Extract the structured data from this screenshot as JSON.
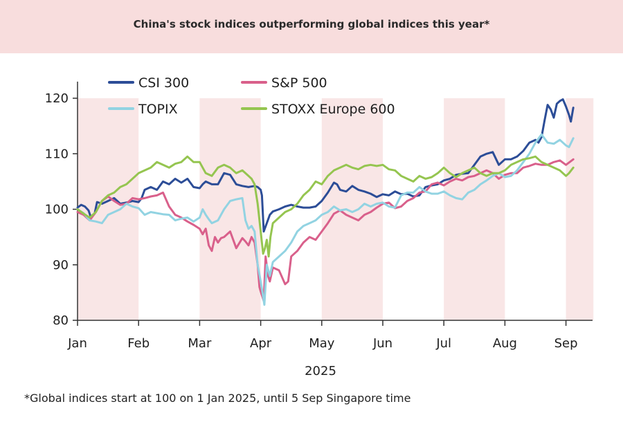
{
  "header": {
    "title": "China's stock indices outperforming global indices this year*"
  },
  "footnote": "*Global indices start at 100 on 1 Jan 2025, until 5 Sep Singapore time",
  "chart_data": {
    "type": "line",
    "title": "China's stock indices outperforming global indices this year*",
    "xlabel": "2025",
    "ylabel": "",
    "ylim": [
      80,
      120
    ],
    "yticks": [
      80,
      90,
      100,
      110,
      120
    ],
    "xlim": [
      0,
      8.4
    ],
    "months": [
      "Jan",
      "Feb",
      "Mar",
      "Apr",
      "May",
      "Jun",
      "Jul",
      "Aug",
      "Sep"
    ],
    "grid": false,
    "legend": "top-left",
    "shaded_month_bands": [
      [
        0,
        1
      ],
      [
        2,
        3
      ],
      [
        4,
        5
      ],
      [
        6,
        7
      ],
      [
        8,
        8.45
      ]
    ],
    "colors": {
      "shade": "#f9e6e6",
      "axis": "#333333"
    },
    "series": [
      {
        "name": "CSI 300",
        "color": "#2c4d97",
        "x": [
          0,
          0.06,
          0.12,
          0.18,
          0.22,
          0.28,
          0.32,
          0.4,
          0.5,
          0.6,
          0.7,
          0.8,
          0.9,
          1.0,
          1.05,
          1.1,
          1.2,
          1.3,
          1.4,
          1.5,
          1.6,
          1.7,
          1.8,
          1.9,
          2.0,
          2.05,
          2.1,
          2.2,
          2.3,
          2.4,
          2.5,
          2.6,
          2.7,
          2.8,
          2.9,
          2.95,
          3.0,
          3.02,
          3.05,
          3.1,
          3.15,
          3.2,
          3.3,
          3.4,
          3.5,
          3.6,
          3.7,
          3.8,
          3.9,
          4.0,
          4.1,
          4.2,
          4.25,
          4.3,
          4.4,
          4.5,
          4.6,
          4.7,
          4.8,
          4.9,
          5.0,
          5.1,
          5.2,
          5.3,
          5.4,
          5.5,
          5.6,
          5.7,
          5.8,
          5.9,
          6.0,
          6.1,
          6.2,
          6.3,
          6.4,
          6.5,
          6.6,
          6.7,
          6.8,
          6.9,
          7.0,
          7.1,
          7.2,
          7.3,
          7.4,
          7.5,
          7.55,
          7.6,
          7.65,
          7.7,
          7.75,
          7.8,
          7.85,
          7.9,
          7.95,
          8.0,
          8.05,
          8.08,
          8.12
        ],
        "y": [
          100.3,
          100.8,
          100.5,
          99.8,
          98.5,
          99.2,
          101.3,
          101,
          101.5,
          102,
          101,
          101.2,
          101.5,
          101.3,
          102,
          103.5,
          104,
          103.5,
          105,
          104.5,
          105.5,
          104.8,
          105.5,
          104,
          103.8,
          104.5,
          105,
          104.5,
          104.5,
          106.5,
          106.2,
          104.5,
          104.2,
          104,
          104.2,
          104,
          103.5,
          102.5,
          96,
          97.5,
          99,
          99.6,
          100,
          100.5,
          100.8,
          100.5,
          100.3,
          100.3,
          100.5,
          101.5,
          103,
          104.8,
          104.5,
          103.5,
          103.2,
          104.2,
          103.5,
          103.2,
          102.8,
          102.2,
          102.7,
          102.5,
          103.2,
          102.7,
          102.8,
          102.3,
          102.5,
          104,
          104.3,
          104.5,
          105.2,
          105.5,
          106.2,
          106.4,
          106.5,
          108,
          109.5,
          110,
          110.3,
          108,
          109,
          109,
          109.5,
          110.5,
          112,
          112.5,
          112,
          113,
          116,
          118.8,
          118,
          116.5,
          119,
          119.5,
          119.8,
          118.5,
          117,
          115.8,
          118.3
        ]
      },
      {
        "name": "S&P 500",
        "color": "#d9608b",
        "x": [
          0,
          0.1,
          0.2,
          0.3,
          0.4,
          0.5,
          0.6,
          0.7,
          0.8,
          0.9,
          1.0,
          1.1,
          1.2,
          1.3,
          1.4,
          1.5,
          1.6,
          1.7,
          1.8,
          1.9,
          2.0,
          2.05,
          2.1,
          2.15,
          2.2,
          2.25,
          2.3,
          2.35,
          2.4,
          2.5,
          2.6,
          2.7,
          2.75,
          2.8,
          2.85,
          2.9,
          2.95,
          2.98,
          3.0,
          3.05,
          3.08,
          3.12,
          3.15,
          3.2,
          3.3,
          3.4,
          3.45,
          3.5,
          3.6,
          3.7,
          3.8,
          3.9,
          4.0,
          4.1,
          4.2,
          4.3,
          4.4,
          4.5,
          4.6,
          4.7,
          4.8,
          4.9,
          5.0,
          5.1,
          5.2,
          5.3,
          5.4,
          5.5,
          5.6,
          5.7,
          5.8,
          5.9,
          6.0,
          6.1,
          6.2,
          6.3,
          6.4,
          6.5,
          6.6,
          6.7,
          6.8,
          6.9,
          7.0,
          7.1,
          7.2,
          7.3,
          7.4,
          7.5,
          7.6,
          7.7,
          7.8,
          7.9,
          8.0,
          8.12
        ],
        "y": [
          99.5,
          99,
          98,
          99.5,
          101.5,
          102.3,
          101.5,
          100.8,
          101,
          102,
          101.8,
          102,
          102.3,
          102.5,
          103,
          100.5,
          99,
          98.5,
          97.8,
          97.2,
          96.5,
          95.5,
          96.5,
          93.5,
          92.5,
          95,
          94,
          94.8,
          95,
          96,
          93,
          94.8,
          94.2,
          93.5,
          95,
          94,
          90,
          86,
          85.2,
          83.5,
          91.5,
          88,
          87,
          89.5,
          89,
          86.5,
          87,
          91.5,
          92.5,
          94,
          95,
          94.5,
          96,
          97.5,
          99.2,
          99.8,
          99,
          98.5,
          98,
          99,
          99.5,
          100.3,
          101,
          101.2,
          100.2,
          100.5,
          101.5,
          102,
          103,
          103.2,
          104.5,
          104.8,
          104.3,
          105,
          105.5,
          105.2,
          105.8,
          106,
          106.5,
          107,
          106.5,
          105.5,
          106.2,
          106.5,
          106.5,
          107.5,
          107.8,
          108.2,
          108,
          108,
          108.5,
          108.8,
          108,
          109
        ]
      },
      {
        "name": "TOPIX",
        "color": "#92d3e2",
        "x": [
          0,
          0.1,
          0.2,
          0.3,
          0.4,
          0.5,
          0.6,
          0.7,
          0.8,
          0.9,
          1.0,
          1.1,
          1.2,
          1.3,
          1.4,
          1.5,
          1.6,
          1.7,
          1.8,
          1.9,
          2.0,
          2.05,
          2.1,
          2.15,
          2.2,
          2.3,
          2.4,
          2.5,
          2.6,
          2.7,
          2.75,
          2.8,
          2.85,
          2.9,
          2.95,
          3.0,
          3.03,
          3.06,
          3.1,
          3.15,
          3.2,
          3.3,
          3.4,
          3.5,
          3.6,
          3.7,
          3.8,
          3.9,
          4.0,
          4.1,
          4.2,
          4.3,
          4.4,
          4.5,
          4.6,
          4.7,
          4.8,
          4.9,
          5.0,
          5.1,
          5.2,
          5.3,
          5.4,
          5.5,
          5.6,
          5.7,
          5.8,
          5.9,
          6.0,
          6.1,
          6.2,
          6.3,
          6.4,
          6.5,
          6.6,
          6.7,
          6.8,
          6.9,
          7.0,
          7.1,
          7.2,
          7.3,
          7.4,
          7.5,
          7.6,
          7.7,
          7.8,
          7.9,
          8.0,
          8.05,
          8.12
        ],
        "y": [
          100,
          99.3,
          98,
          97.8,
          97.5,
          99,
          99.5,
          100,
          101,
          100.5,
          100.2,
          99,
          99.5,
          99.3,
          99.1,
          99,
          98,
          98.3,
          98.5,
          97.8,
          98.5,
          100,
          99,
          98.2,
          97.5,
          98,
          100,
          101.5,
          101.8,
          102,
          98,
          96.5,
          97,
          96,
          90,
          87,
          85,
          82.8,
          90,
          88,
          90.5,
          91.5,
          92.5,
          94,
          96,
          97,
          97.5,
          98,
          99,
          99.5,
          100.5,
          99.8,
          100,
          99.5,
          100,
          101,
          100.5,
          101,
          101.2,
          100.5,
          100.3,
          102.5,
          103,
          103,
          104,
          103.2,
          102.8,
          102.8,
          103.2,
          102.5,
          102,
          101.8,
          103,
          103.5,
          104.5,
          105.2,
          106,
          106.5,
          105.8,
          106,
          107,
          108.5,
          110,
          112,
          113.5,
          112,
          111.8,
          112.5,
          111.5,
          111.2,
          112.8
        ]
      },
      {
        "name": "STOXX Europe 600",
        "color": "#95c550",
        "x": [
          0,
          0.1,
          0.2,
          0.3,
          0.4,
          0.5,
          0.6,
          0.7,
          0.8,
          0.9,
          1.0,
          1.1,
          1.2,
          1.3,
          1.4,
          1.5,
          1.6,
          1.7,
          1.8,
          1.9,
          2.0,
          2.05,
          2.1,
          2.2,
          2.3,
          2.4,
          2.5,
          2.6,
          2.7,
          2.8,
          2.85,
          2.9,
          2.95,
          3.0,
          3.04,
          3.07,
          3.1,
          3.13,
          3.16,
          3.2,
          3.3,
          3.4,
          3.5,
          3.6,
          3.7,
          3.8,
          3.9,
          4.0,
          4.1,
          4.2,
          4.3,
          4.4,
          4.5,
          4.6,
          4.7,
          4.8,
          4.9,
          5.0,
          5.1,
          5.2,
          5.3,
          5.4,
          5.5,
          5.6,
          5.7,
          5.8,
          5.9,
          6.0,
          6.1,
          6.2,
          6.3,
          6.4,
          6.5,
          6.6,
          6.7,
          6.8,
          6.9,
          7.0,
          7.1,
          7.2,
          7.3,
          7.4,
          7.5,
          7.6,
          7.7,
          7.8,
          7.9,
          8.0,
          8.05,
          8.12
        ],
        "y": [
          100,
          99.2,
          98.5,
          99.5,
          101.5,
          102.5,
          103,
          104,
          104.5,
          105.5,
          106.5,
          107,
          107.5,
          108.5,
          108,
          107.5,
          108.2,
          108.5,
          109.5,
          108.5,
          108.5,
          107.5,
          106.5,
          106,
          107.5,
          108,
          107.5,
          106.5,
          107,
          106,
          105.5,
          104.5,
          101,
          96,
          92,
          93,
          94.5,
          91.5,
          95,
          97.5,
          98.5,
          99.5,
          100,
          101,
          102.5,
          103.5,
          105,
          104.5,
          106,
          107,
          107.5,
          108,
          107.5,
          107.2,
          107.8,
          108,
          107.8,
          108,
          107.2,
          107,
          106,
          105.5,
          105,
          106,
          105.5,
          105.8,
          106.5,
          107.5,
          106.5,
          105.8,
          106.5,
          107,
          107.5,
          106.5,
          106,
          106.5,
          106.5,
          107,
          108,
          108.5,
          109,
          109.2,
          109.5,
          108.5,
          108,
          107.5,
          107,
          106,
          106.5,
          107.5
        ]
      }
    ]
  }
}
